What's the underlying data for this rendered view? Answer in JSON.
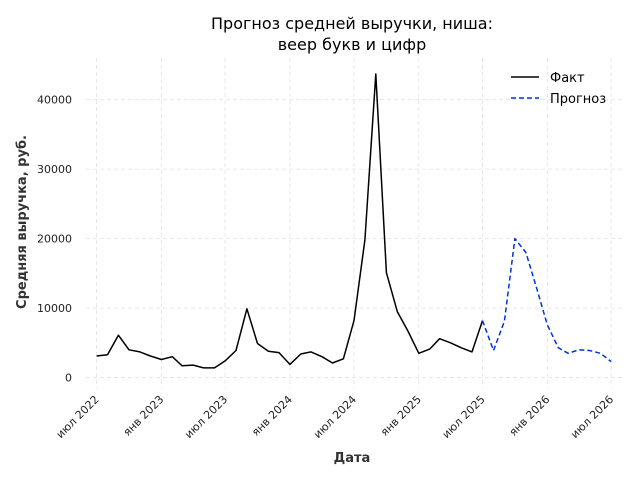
{
  "chart_data": {
    "type": "line",
    "title": "Прогноз средней выручки, ниша:\nвеер букв и цифр",
    "title_lines": [
      "Прогноз средней выручки, ниша:",
      "веер букв и цифр"
    ],
    "xlabel": "Дата",
    "ylabel": "Средняя выручка, руб.",
    "x_ticks": [
      "2022-07-01",
      "2023-01-01",
      "2023-07-01",
      "2024-01-01",
      "2024-07-01",
      "2025-01-01",
      "2025-07-01",
      "2026-01-01",
      "2026-07-01"
    ],
    "x_tick_labels": [
      "июл 2022",
      "янв 2023",
      "июл 2023",
      "янв 2024",
      "июл 2024",
      "янв 2025",
      "июл 2025",
      "янв 2026",
      "июл 2026"
    ],
    "y_ticks": [
      0,
      10000,
      20000,
      30000,
      40000
    ],
    "ylim": [
      -1500,
      46000
    ],
    "xlim": [
      "2022-06-01",
      "2026-08-01"
    ],
    "grid": true,
    "legend_position": "top-right",
    "series": [
      {
        "name": "Факт",
        "color": "#000000",
        "dash": "solid",
        "points": [
          [
            "2022-07-01",
            3100
          ],
          [
            "2022-08-01",
            3300
          ],
          [
            "2022-09-01",
            6100
          ],
          [
            "2022-10-01",
            4000
          ],
          [
            "2022-11-01",
            3700
          ],
          [
            "2022-12-01",
            3100
          ],
          [
            "2023-01-01",
            2600
          ],
          [
            "2023-02-01",
            3000
          ],
          [
            "2023-03-01",
            1700
          ],
          [
            "2023-04-01",
            1800
          ],
          [
            "2023-05-01",
            1400
          ],
          [
            "2023-06-01",
            1400
          ],
          [
            "2023-07-01",
            2400
          ],
          [
            "2023-08-01",
            3900
          ],
          [
            "2023-09-01",
            9900
          ],
          [
            "2023-10-01",
            4900
          ],
          [
            "2023-11-01",
            3800
          ],
          [
            "2023-12-01",
            3600
          ],
          [
            "2024-01-01",
            1900
          ],
          [
            "2024-02-01",
            3400
          ],
          [
            "2024-03-01",
            3700
          ],
          [
            "2024-04-01",
            3000
          ],
          [
            "2024-05-01",
            2100
          ],
          [
            "2024-06-01",
            2700
          ],
          [
            "2024-07-01",
            8200
          ],
          [
            "2024-08-01",
            19800
          ],
          [
            "2024-09-01",
            43700
          ],
          [
            "2024-10-01",
            15100
          ],
          [
            "2024-11-01",
            9500
          ],
          [
            "2024-12-01",
            6700
          ],
          [
            "2025-01-01",
            3500
          ],
          [
            "2025-02-01",
            4100
          ],
          [
            "2025-03-01",
            5600
          ],
          [
            "2025-04-01",
            5000
          ],
          [
            "2025-05-01",
            4300
          ],
          [
            "2025-06-01",
            3700
          ],
          [
            "2025-07-01",
            8200
          ]
        ]
      },
      {
        "name": "Прогноз",
        "color": "#0033dd",
        "dash": "dashed",
        "points": [
          [
            "2025-07-01",
            8200
          ],
          [
            "2025-08-01",
            3900
          ],
          [
            "2025-09-01",
            8100
          ],
          [
            "2025-10-01",
            20000
          ],
          [
            "2025-11-01",
            18000
          ],
          [
            "2025-12-01",
            13000
          ],
          [
            "2026-01-01",
            7600
          ],
          [
            "2026-02-01",
            4300
          ],
          [
            "2026-03-01",
            3500
          ],
          [
            "2026-04-01",
            4000
          ],
          [
            "2026-05-01",
            3900
          ],
          [
            "2026-06-01",
            3500
          ],
          [
            "2026-07-01",
            2300
          ]
        ]
      }
    ]
  }
}
